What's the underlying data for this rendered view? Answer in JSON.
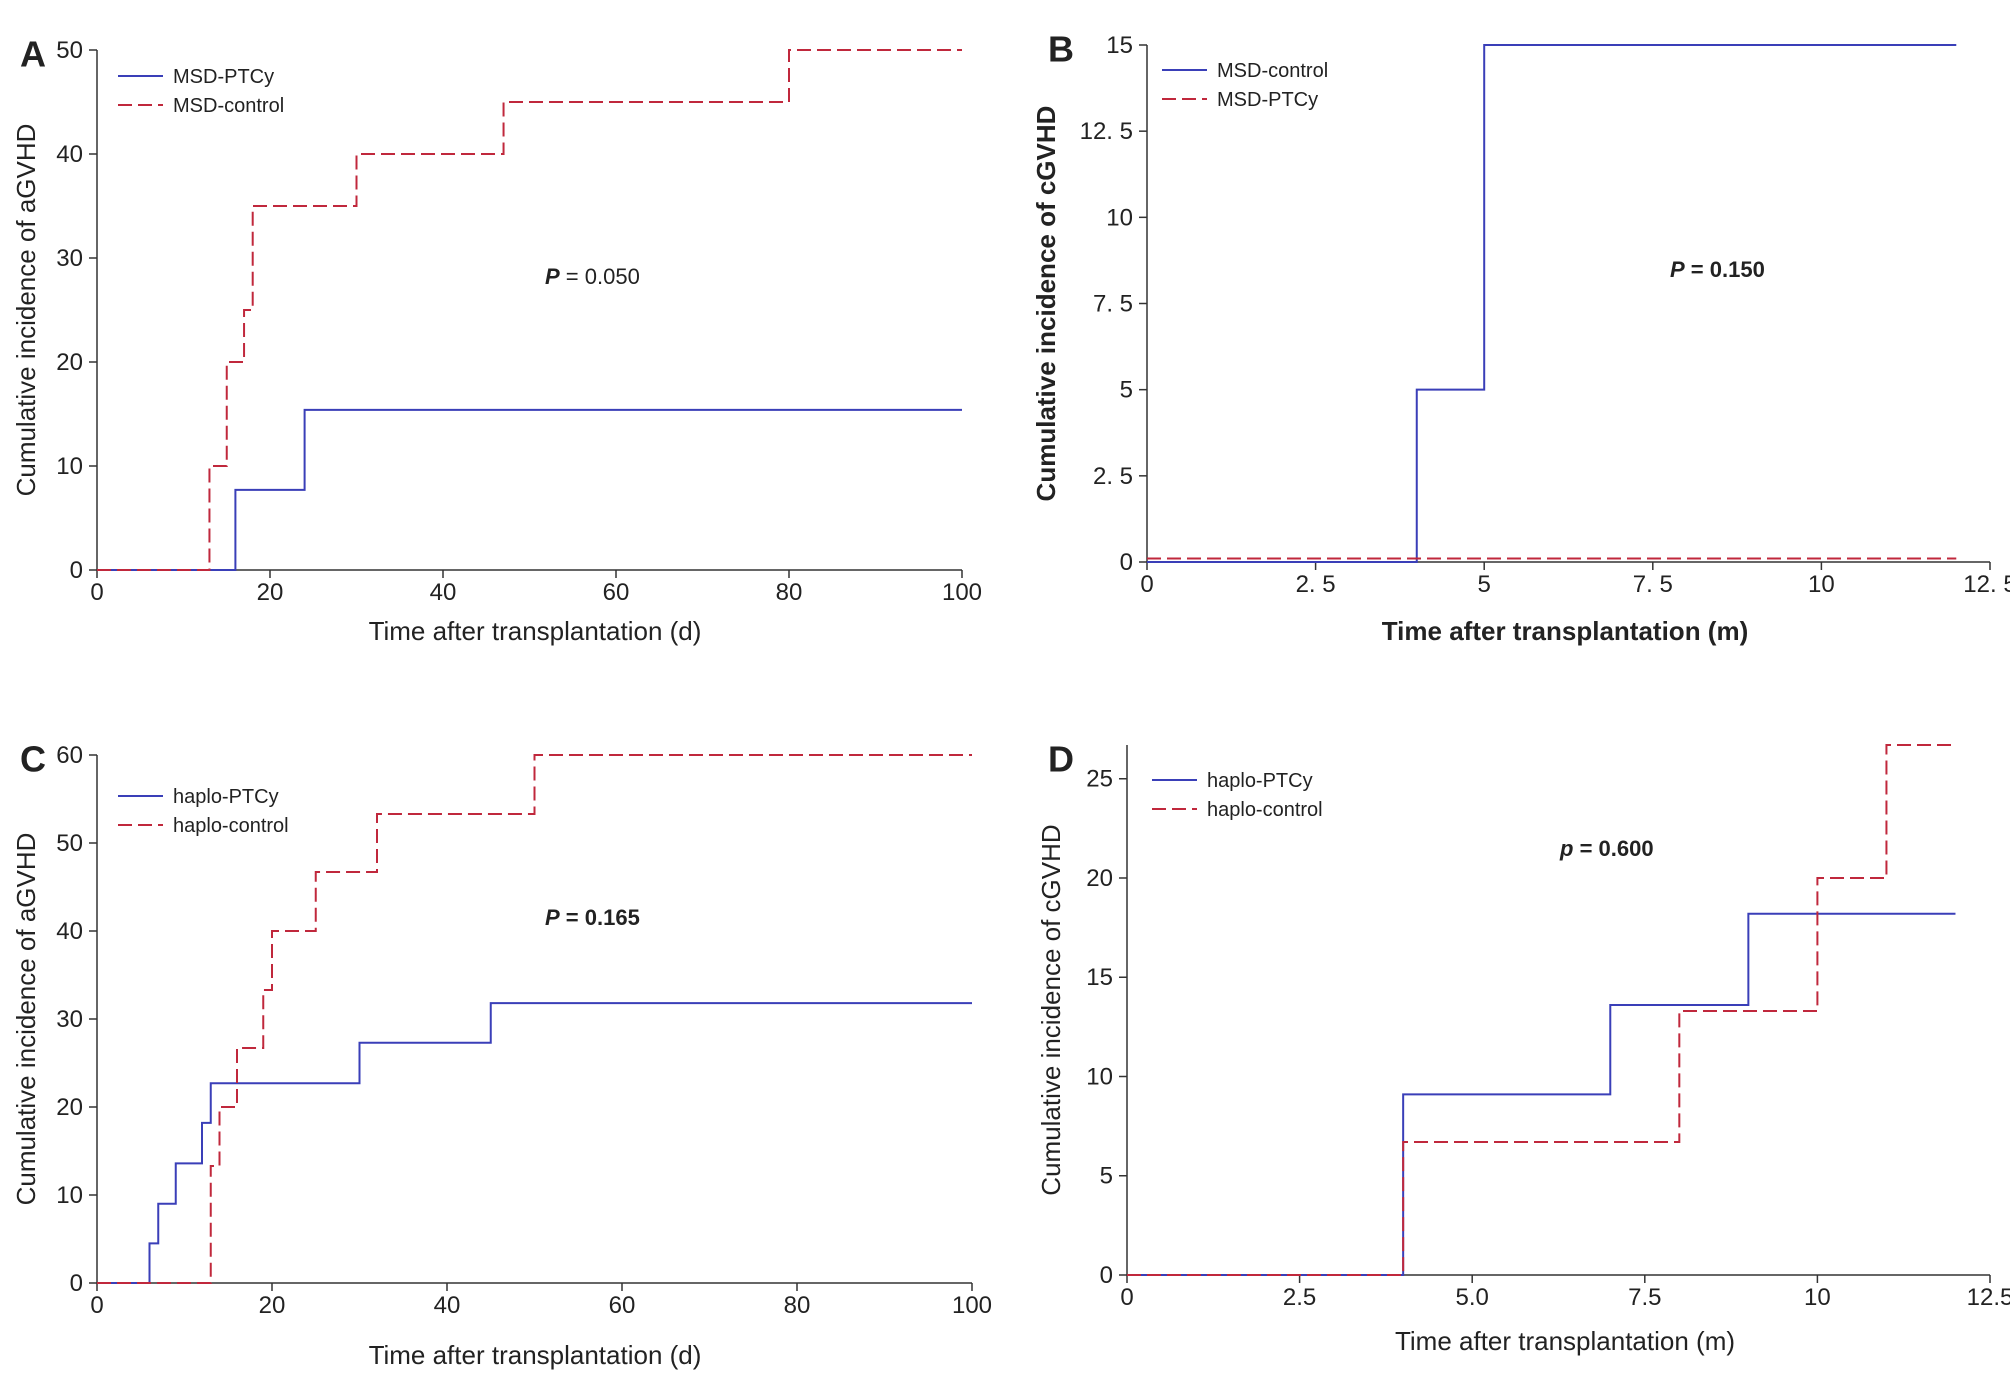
{
  "chart_data": [
    {
      "panel": "A",
      "type": "line",
      "step": true,
      "xlabel": "Time after transplantation (d)",
      "ylabel": "Cumulative incidence of aGVHD",
      "xlim": [
        0,
        100
      ],
      "ylim": [
        0,
        50
      ],
      "xticks": [
        "0",
        "20",
        "40",
        "60",
        "80",
        "100"
      ],
      "xtick_values": [
        0,
        20,
        40,
        60,
        80,
        100
      ],
      "yticks": [
        "0",
        "10",
        "20",
        "30",
        "40",
        "50"
      ],
      "ytick_values": [
        0,
        10,
        20,
        30,
        40,
        50
      ],
      "pvalue": {
        "prefix": "P",
        "text": " = 0.050",
        "bold": false
      },
      "legend_position": "top-left",
      "series": [
        {
          "name": "MSD-PTCy",
          "color": "#3a3fb8",
          "style": "solid",
          "x": [
            0,
            16,
            24,
            100
          ],
          "y": [
            0,
            7.7,
            15.4,
            15.4
          ]
        },
        {
          "name": "MSD-control",
          "color": "#c0283c",
          "style": "dashed",
          "x": [
            0,
            13,
            15,
            17,
            18,
            30,
            47,
            80,
            100
          ],
          "y": [
            0,
            10,
            20,
            25,
            35,
            40,
            45,
            50,
            50
          ]
        }
      ]
    },
    {
      "panel": "B",
      "type": "line",
      "step": true,
      "xlabel": "Time after transplantation (m)",
      "ylabel": "Cumulative incidence of cGVHD",
      "xlim": [
        0,
        12.5
      ],
      "ylim": [
        0,
        15
      ],
      "xticks": [
        "0",
        "2. 5",
        "5",
        "7. 5",
        "10",
        "12. 5"
      ],
      "xtick_values": [
        0,
        2.5,
        5,
        7.5,
        10,
        12.5
      ],
      "yticks": [
        "0",
        "2. 5",
        "5",
        "7. 5",
        "10",
        "12. 5",
        "15"
      ],
      "ytick_values": [
        0,
        2.5,
        5,
        7.5,
        10,
        12.5,
        15
      ],
      "pvalue": {
        "prefix": "P",
        "text": " = 0.150",
        "bold": true
      },
      "legend_position": "top-left",
      "series": [
        {
          "name": "MSD-control",
          "color": "#3a3fb8",
          "style": "solid",
          "x": [
            0,
            4,
            5,
            12
          ],
          "y": [
            0,
            5,
            15,
            15
          ]
        },
        {
          "name": "MSD-PTCy",
          "color": "#c0283c",
          "style": "dashed",
          "x": [
            0,
            12
          ],
          "y": [
            0.1,
            0.1
          ]
        }
      ]
    },
    {
      "panel": "C",
      "type": "line",
      "step": true,
      "xlabel": "Time after transplantation (d)",
      "ylabel": "Cumulative incidence of aGVHD",
      "xlim": [
        0,
        100
      ],
      "ylim": [
        0,
        60
      ],
      "xticks": [
        "0",
        "20",
        "40",
        "60",
        "80",
        "100"
      ],
      "xtick_values": [
        0,
        20,
        40,
        60,
        80,
        100
      ],
      "yticks": [
        "0",
        "10",
        "20",
        "30",
        "40",
        "50",
        "60"
      ],
      "ytick_values": [
        0,
        10,
        20,
        30,
        40,
        50,
        60
      ],
      "pvalue": {
        "prefix": "P",
        "text": " = 0.165",
        "bold": true
      },
      "legend_position": "top-left",
      "series": [
        {
          "name": "haplo-PTCy",
          "color": "#3a3fb8",
          "style": "solid",
          "x": [
            0,
            6,
            7,
            9,
            12,
            13,
            30,
            45,
            100
          ],
          "y": [
            0,
            4.5,
            9,
            13.6,
            18.2,
            22.7,
            27.3,
            31.8,
            31.8
          ]
        },
        {
          "name": "haplo-control",
          "color": "#c0283c",
          "style": "dashed",
          "x": [
            0,
            13,
            14,
            16,
            19,
            20,
            25,
            32,
            50,
            100
          ],
          "y": [
            0,
            13.3,
            20,
            26.7,
            33.3,
            40,
            46.7,
            53.3,
            60,
            60
          ]
        }
      ]
    },
    {
      "panel": "D",
      "type": "line",
      "step": true,
      "xlabel": "Time after transplantation (m)",
      "ylabel": "Cumulative incidence of cGVHD",
      "xlim": [
        0,
        12.5
      ],
      "ylim": [
        0,
        26.7
      ],
      "xticks": [
        "0",
        "2.5",
        "5.0",
        "7.5",
        "10",
        "12.5"
      ],
      "xtick_values": [
        0,
        2.5,
        5,
        7.5,
        10,
        12.5
      ],
      "yticks": [
        "0",
        "5",
        "10",
        "15",
        "20",
        "25"
      ],
      "ytick_values": [
        0,
        5,
        10,
        15,
        20,
        25
      ],
      "pvalue": {
        "prefix": "p",
        "text": " = 0.600",
        "bold": true
      },
      "legend_position": "top-left",
      "series": [
        {
          "name": "haplo-PTCy",
          "color": "#3a3fb8",
          "style": "solid",
          "x": [
            0,
            4,
            7,
            9,
            12
          ],
          "y": [
            0,
            9.1,
            13.6,
            18.2,
            18.2
          ]
        },
        {
          "name": "haplo-control",
          "color": "#c0283c",
          "style": "dashed",
          "x": [
            0,
            4,
            8,
            10,
            11,
            12
          ],
          "y": [
            0,
            6.7,
            13.3,
            20,
            26.7,
            26.7
          ]
        }
      ]
    }
  ]
}
